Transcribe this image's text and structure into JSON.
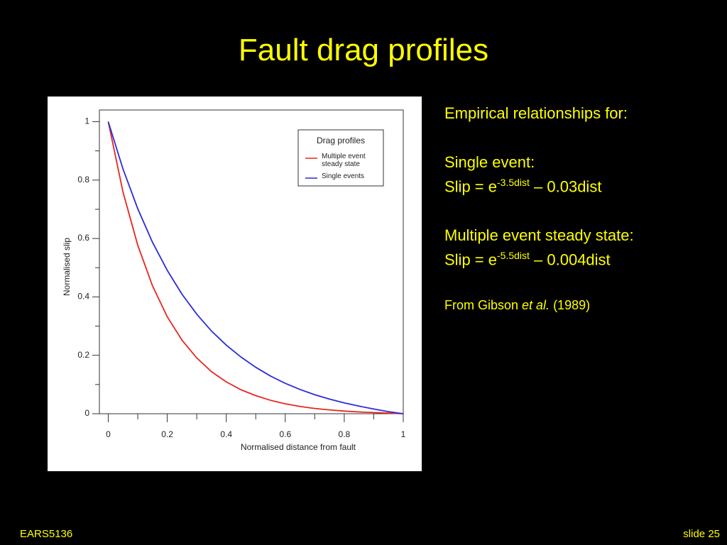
{
  "slide": {
    "title": "Fault drag profiles",
    "footer_left": "EARS5136",
    "footer_right": "slide 25"
  },
  "notes": {
    "heading": "Empirical relationships for:",
    "single_label": "Single event:",
    "single_formula": {
      "base": "Slip = e",
      "exponent": "-3.5dist",
      "rest": " – 0.03dist"
    },
    "multiple_label": "Multiple event steady state:",
    "multiple_formula": {
      "base": "Slip = e",
      "exponent": "-5.5dist",
      "rest": " – 0.004dist"
    },
    "citation": {
      "before": "From Gibson ",
      "italic": "et al.",
      "after": " (1989)"
    }
  },
  "chart_data": {
    "type": "line",
    "x_label": "Normalised distance from fault",
    "y_label": "Normalised slip",
    "legend_title": "Drag profiles",
    "legend": "top-right",
    "x": [
      0,
      0.05,
      0.1,
      0.15,
      0.2,
      0.25,
      0.3,
      0.35,
      0.4,
      0.45,
      0.5,
      0.55,
      0.6,
      0.65,
      0.7,
      0.75,
      0.8,
      0.85,
      0.9,
      0.95,
      1
    ],
    "series": [
      {
        "name": "Multiple event steady state",
        "color": "#e8261f",
        "values": [
          1,
          0.759,
          0.577,
          0.438,
          0.332,
          0.252,
          0.191,
          0.144,
          0.109,
          0.082,
          0.062,
          0.046,
          0.034,
          0.025,
          0.018,
          0.013,
          0.009,
          0.006,
          0.004,
          0.002,
          0
        ]
      },
      {
        "name": "Single events",
        "color": "#2b2bd9",
        "values": [
          1,
          0.838,
          0.702,
          0.587,
          0.491,
          0.409,
          0.341,
          0.283,
          0.235,
          0.194,
          0.159,
          0.129,
          0.104,
          0.083,
          0.065,
          0.05,
          0.037,
          0.026,
          0.016,
          0.007,
          0
        ]
      }
    ],
    "xlim": [
      -0.03,
      1
    ],
    "ylim": [
      0,
      1.04
    ],
    "xticks": [
      0,
      0.2,
      0.4,
      0.6,
      0.8,
      1
    ],
    "yticks": [
      0,
      0.2,
      0.4,
      0.6,
      0.8,
      1
    ],
    "xminorticks": [
      0.1,
      0.3,
      0.5,
      0.7,
      0.9
    ],
    "yminorticks": [
      0.1,
      0.3,
      0.5,
      0.7,
      0.9
    ]
  }
}
